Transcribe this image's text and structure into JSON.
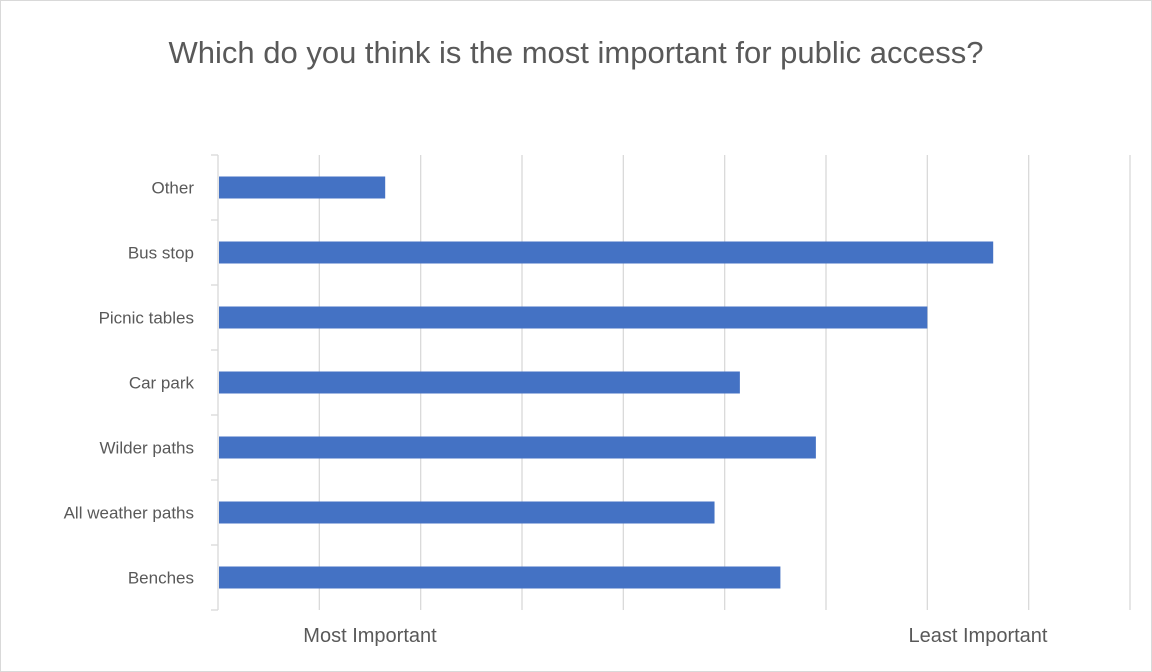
{
  "chart_data": {
    "type": "bar",
    "orientation": "horizontal",
    "title": "Which do you think is the most important for public access?",
    "categories": [
      "Other",
      "Bus stop",
      "Picnic tables",
      "Car park",
      "Wilder paths",
      "All weather paths",
      "Benches"
    ],
    "values": [
      1.65,
      7.65,
      7.0,
      5.15,
      5.9,
      4.9,
      5.55
    ],
    "xlim": [
      0,
      9
    ],
    "x_tick_labels": [
      {
        "value": 1.5,
        "label": "Most Important"
      },
      {
        "value": 7.5,
        "label": "Least Important"
      }
    ],
    "grid": true,
    "legend": "none",
    "bar_color": "#4472c4"
  }
}
